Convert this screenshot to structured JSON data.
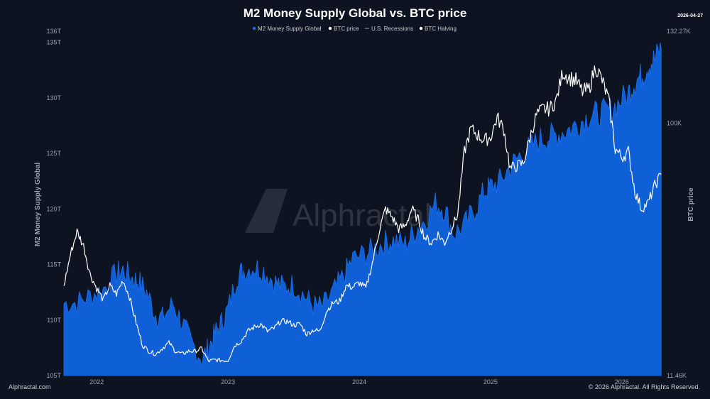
{
  "colors": {
    "background": "#0d1320",
    "m2_fill": "#0f5fd6",
    "m2_fill_light": "#1a6ef0",
    "btc_line": "#ffffff",
    "tick": "#9aa1ad",
    "watermark": "#3a3f4a"
  },
  "header": {
    "title": "M2 Money Supply Global vs. BTC price",
    "date": "2026-04-27"
  },
  "legend": [
    {
      "label": "M2 Money Supply Global",
      "marker": "dot-blue"
    },
    {
      "label": "BTC price",
      "marker": "dot-white"
    },
    {
      "label": "U.S. Recessions",
      "marker": "dash"
    },
    {
      "label": "BTC Halving",
      "marker": "dot-white"
    }
  ],
  "watermark": {
    "text": "Alphractal"
  },
  "footer": {
    "left": "Alphractal.com",
    "right": "© 2026 Alphractal. All Rights Reserved."
  },
  "chart_data": {
    "type": "area",
    "title": "M2 Money Supply Global vs. BTC price",
    "x_ticks": [
      "2022",
      "2023",
      "2024",
      "2025",
      "2026"
    ],
    "x_range": [
      2021.75,
      2026.32
    ],
    "left_axis": {
      "label": "M2 Money Supply Global",
      "range": [
        105,
        136
      ],
      "ticks": [
        "105T",
        "110T",
        "115T",
        "120T",
        "125T",
        "130T",
        "135T",
        "136T"
      ],
      "tick_values": [
        105,
        110,
        115,
        120,
        125,
        130,
        135,
        136
      ]
    },
    "right_axis": {
      "label": "BTC price",
      "range": [
        11.46,
        132.27
      ],
      "ticks": [
        "11.46K",
        "100K",
        "132.27K"
      ],
      "tick_values": [
        11.46,
        100,
        132.27
      ]
    },
    "grid": false,
    "legend_position": "top-center",
    "series": [
      {
        "name": "M2 Money Supply Global",
        "axis": "left",
        "style": "area",
        "x": [
          2021.75,
          2021.85,
          2021.95,
          2022.05,
          2022.15,
          2022.2,
          2022.27,
          2022.32,
          2022.38,
          2022.45,
          2022.5,
          2022.58,
          2022.65,
          2022.72,
          2022.8,
          2022.85,
          2022.9,
          2022.95,
          2023.0,
          2023.07,
          2023.12,
          2023.2,
          2023.27,
          2023.35,
          2023.42,
          2023.5,
          2023.58,
          2023.65,
          2023.72,
          2023.8,
          2023.88,
          2023.95,
          2024.05,
          2024.12,
          2024.2,
          2024.27,
          2024.35,
          2024.42,
          2024.5,
          2024.58,
          2024.65,
          2024.72,
          2024.8,
          2024.88,
          2024.95,
          2025.0,
          2025.07,
          2025.15,
          2025.22,
          2025.3,
          2025.38,
          2025.45,
          2025.52,
          2025.6,
          2025.68,
          2025.75,
          2025.82,
          2025.9,
          2025.97,
          2026.05,
          2026.1,
          2026.15,
          2026.2,
          2026.25,
          2026.3
        ],
        "values": [
          111.5,
          111.6,
          112.2,
          112.8,
          114.2,
          114.5,
          113.8,
          113.5,
          112.5,
          110.5,
          110.2,
          111.5,
          109.8,
          108.0,
          106.5,
          107.5,
          108.8,
          109.8,
          111.0,
          114.0,
          114.5,
          114.8,
          114.5,
          113.5,
          113.0,
          113.2,
          112.2,
          111.3,
          111.2,
          112.5,
          114.0,
          115.5,
          116.0,
          116.5,
          117.0,
          117.2,
          116.8,
          118.0,
          119.0,
          120.5,
          120.0,
          117.8,
          118.5,
          120.0,
          121.5,
          122.0,
          122.5,
          123.8,
          124.8,
          125.5,
          126.3,
          126.5,
          126.8,
          127.2,
          127.8,
          128.4,
          128.6,
          128.8,
          129.5,
          130.5,
          131.5,
          132.0,
          133.0,
          133.5,
          134.5
        ]
      },
      {
        "name": "BTC price",
        "axis": "right",
        "style": "line",
        "x": [
          2021.75,
          2021.8,
          2021.85,
          2021.9,
          2021.95,
          2022.0,
          2022.05,
          2022.1,
          2022.15,
          2022.2,
          2022.25,
          2022.3,
          2022.35,
          2022.4,
          2022.45,
          2022.5,
          2022.55,
          2022.6,
          2022.65,
          2022.7,
          2022.75,
          2022.8,
          2022.85,
          2022.9,
          2022.95,
          2023.0,
          2023.05,
          2023.1,
          2023.15,
          2023.2,
          2023.25,
          2023.3,
          2023.35,
          2023.4,
          2023.45,
          2023.5,
          2023.55,
          2023.6,
          2023.65,
          2023.7,
          2023.75,
          2023.8,
          2023.85,
          2023.9,
          2023.95,
          2024.0,
          2024.05,
          2024.1,
          2024.15,
          2024.2,
          2024.25,
          2024.3,
          2024.35,
          2024.4,
          2024.45,
          2024.5,
          2024.55,
          2024.6,
          2024.65,
          2024.7,
          2024.75,
          2024.8,
          2024.85,
          2024.9,
          2024.95,
          2025.0,
          2025.05,
          2025.1,
          2025.15,
          2025.2,
          2025.25,
          2025.3,
          2025.35,
          2025.4,
          2025.45,
          2025.5,
          2025.55,
          2025.6,
          2025.65,
          2025.7,
          2025.75,
          2025.8,
          2025.85,
          2025.9,
          2025.95,
          2026.0,
          2026.05,
          2026.1,
          2026.15,
          2026.2,
          2026.25,
          2026.3
        ],
        "values": [
          43,
          54,
          62,
          57,
          47,
          42,
          38,
          43,
          40,
          45,
          39,
          30,
          22,
          20,
          19,
          21,
          23,
          20,
          19,
          20,
          20,
          21,
          16.5,
          17,
          16.8,
          16.7,
          22,
          23.5,
          27,
          28.5,
          29.5,
          27,
          28,
          30.5,
          30.5,
          29.2,
          29.5,
          26,
          27.5,
          27,
          34,
          37,
          37.5,
          43,
          42.5,
          44,
          42,
          51,
          62,
          70,
          67,
          63,
          64,
          70,
          66,
          60,
          58,
          61,
          58,
          63,
          68,
          90,
          98,
          96,
          94,
          95,
          102,
          98,
          84,
          85,
          86,
          95,
          103,
          105,
          105,
          108,
          118,
          116,
          115,
          111,
          112,
          120,
          115,
          108,
          91,
          88,
          90,
          76,
          70,
          72,
          78,
          82
        ]
      }
    ]
  }
}
